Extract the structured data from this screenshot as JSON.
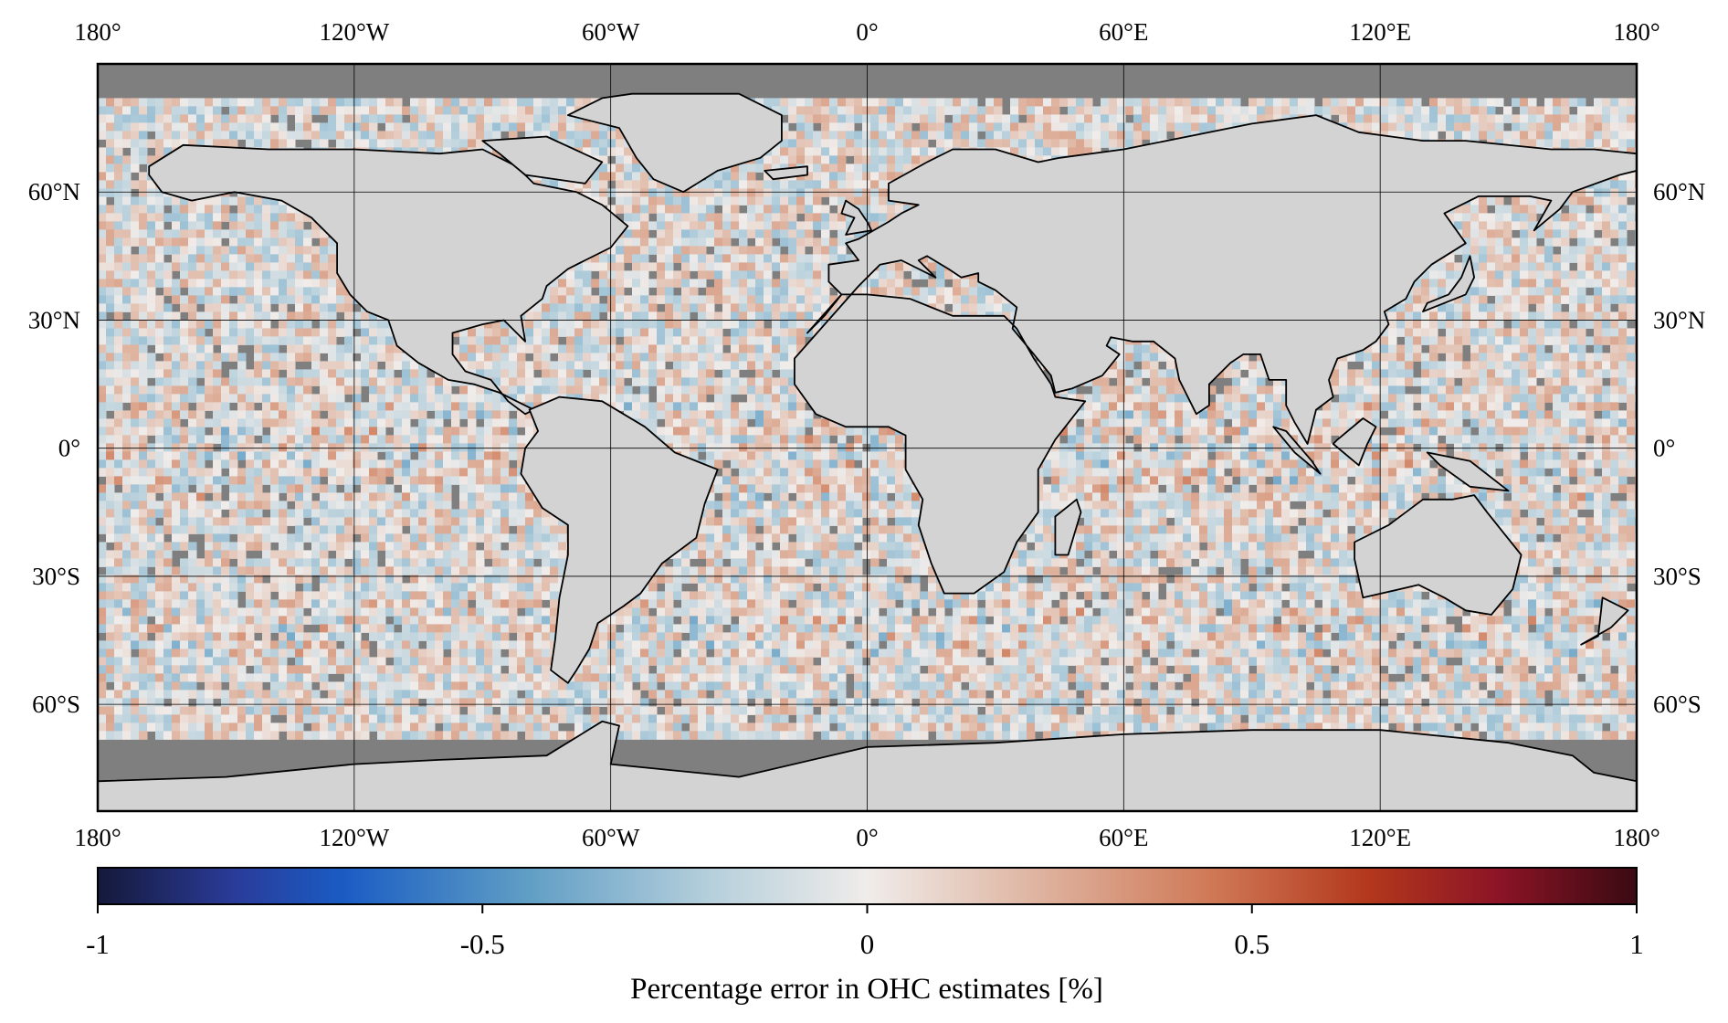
{
  "map": {
    "colors": {
      "ocean_no_data": "#7f7f7f",
      "land": "#d3d3d3",
      "coast": "#000000",
      "grid": "#000000"
    },
    "lon_ticks": [
      {
        "lon": -180,
        "label": "180°"
      },
      {
        "lon": -120,
        "label": "120°W"
      },
      {
        "lon": -60,
        "label": "60°W"
      },
      {
        "lon": 0,
        "label": "0°"
      },
      {
        "lon": 60,
        "label": "60°E"
      },
      {
        "lon": 120,
        "label": "120°E"
      },
      {
        "lon": 180,
        "label": "180°"
      }
    ],
    "lat_ticks": [
      {
        "lat": 60,
        "label": "60°N"
      },
      {
        "lat": 30,
        "label": "30°N"
      },
      {
        "lat": 0,
        "label": "0°"
      },
      {
        "lat": -30,
        "label": "30°S"
      },
      {
        "lat": -60,
        "label": "60°S"
      }
    ],
    "lat_range": [
      -85,
      90
    ],
    "lon_range": [
      -180,
      180
    ]
  },
  "colorbar": {
    "title": "Percentage error in OHC estimates [%]",
    "range": [
      -1,
      1
    ],
    "ticks": [
      {
        "value": -1,
        "label": "-1"
      },
      {
        "value": -0.5,
        "label": "-0.5"
      },
      {
        "value": 0,
        "label": "0"
      },
      {
        "value": 0.5,
        "label": "0.5"
      },
      {
        "value": 1,
        "label": "1"
      }
    ],
    "stops": [
      {
        "v": -1.0,
        "c": "#15193a"
      },
      {
        "v": -0.82,
        "c": "#2a3c9a"
      },
      {
        "v": -0.68,
        "c": "#1a5cc4"
      },
      {
        "v": -0.45,
        "c": "#5d9cc4"
      },
      {
        "v": -0.2,
        "c": "#b7d0dc"
      },
      {
        "v": 0.0,
        "c": "#f0ecea"
      },
      {
        "v": 0.2,
        "c": "#e0b9a7"
      },
      {
        "v": 0.45,
        "c": "#cf7856"
      },
      {
        "v": 0.65,
        "c": "#b3381c"
      },
      {
        "v": 0.82,
        "c": "#8c1426"
      },
      {
        "v": 1.0,
        "c": "#3a0a12"
      }
    ]
  }
}
